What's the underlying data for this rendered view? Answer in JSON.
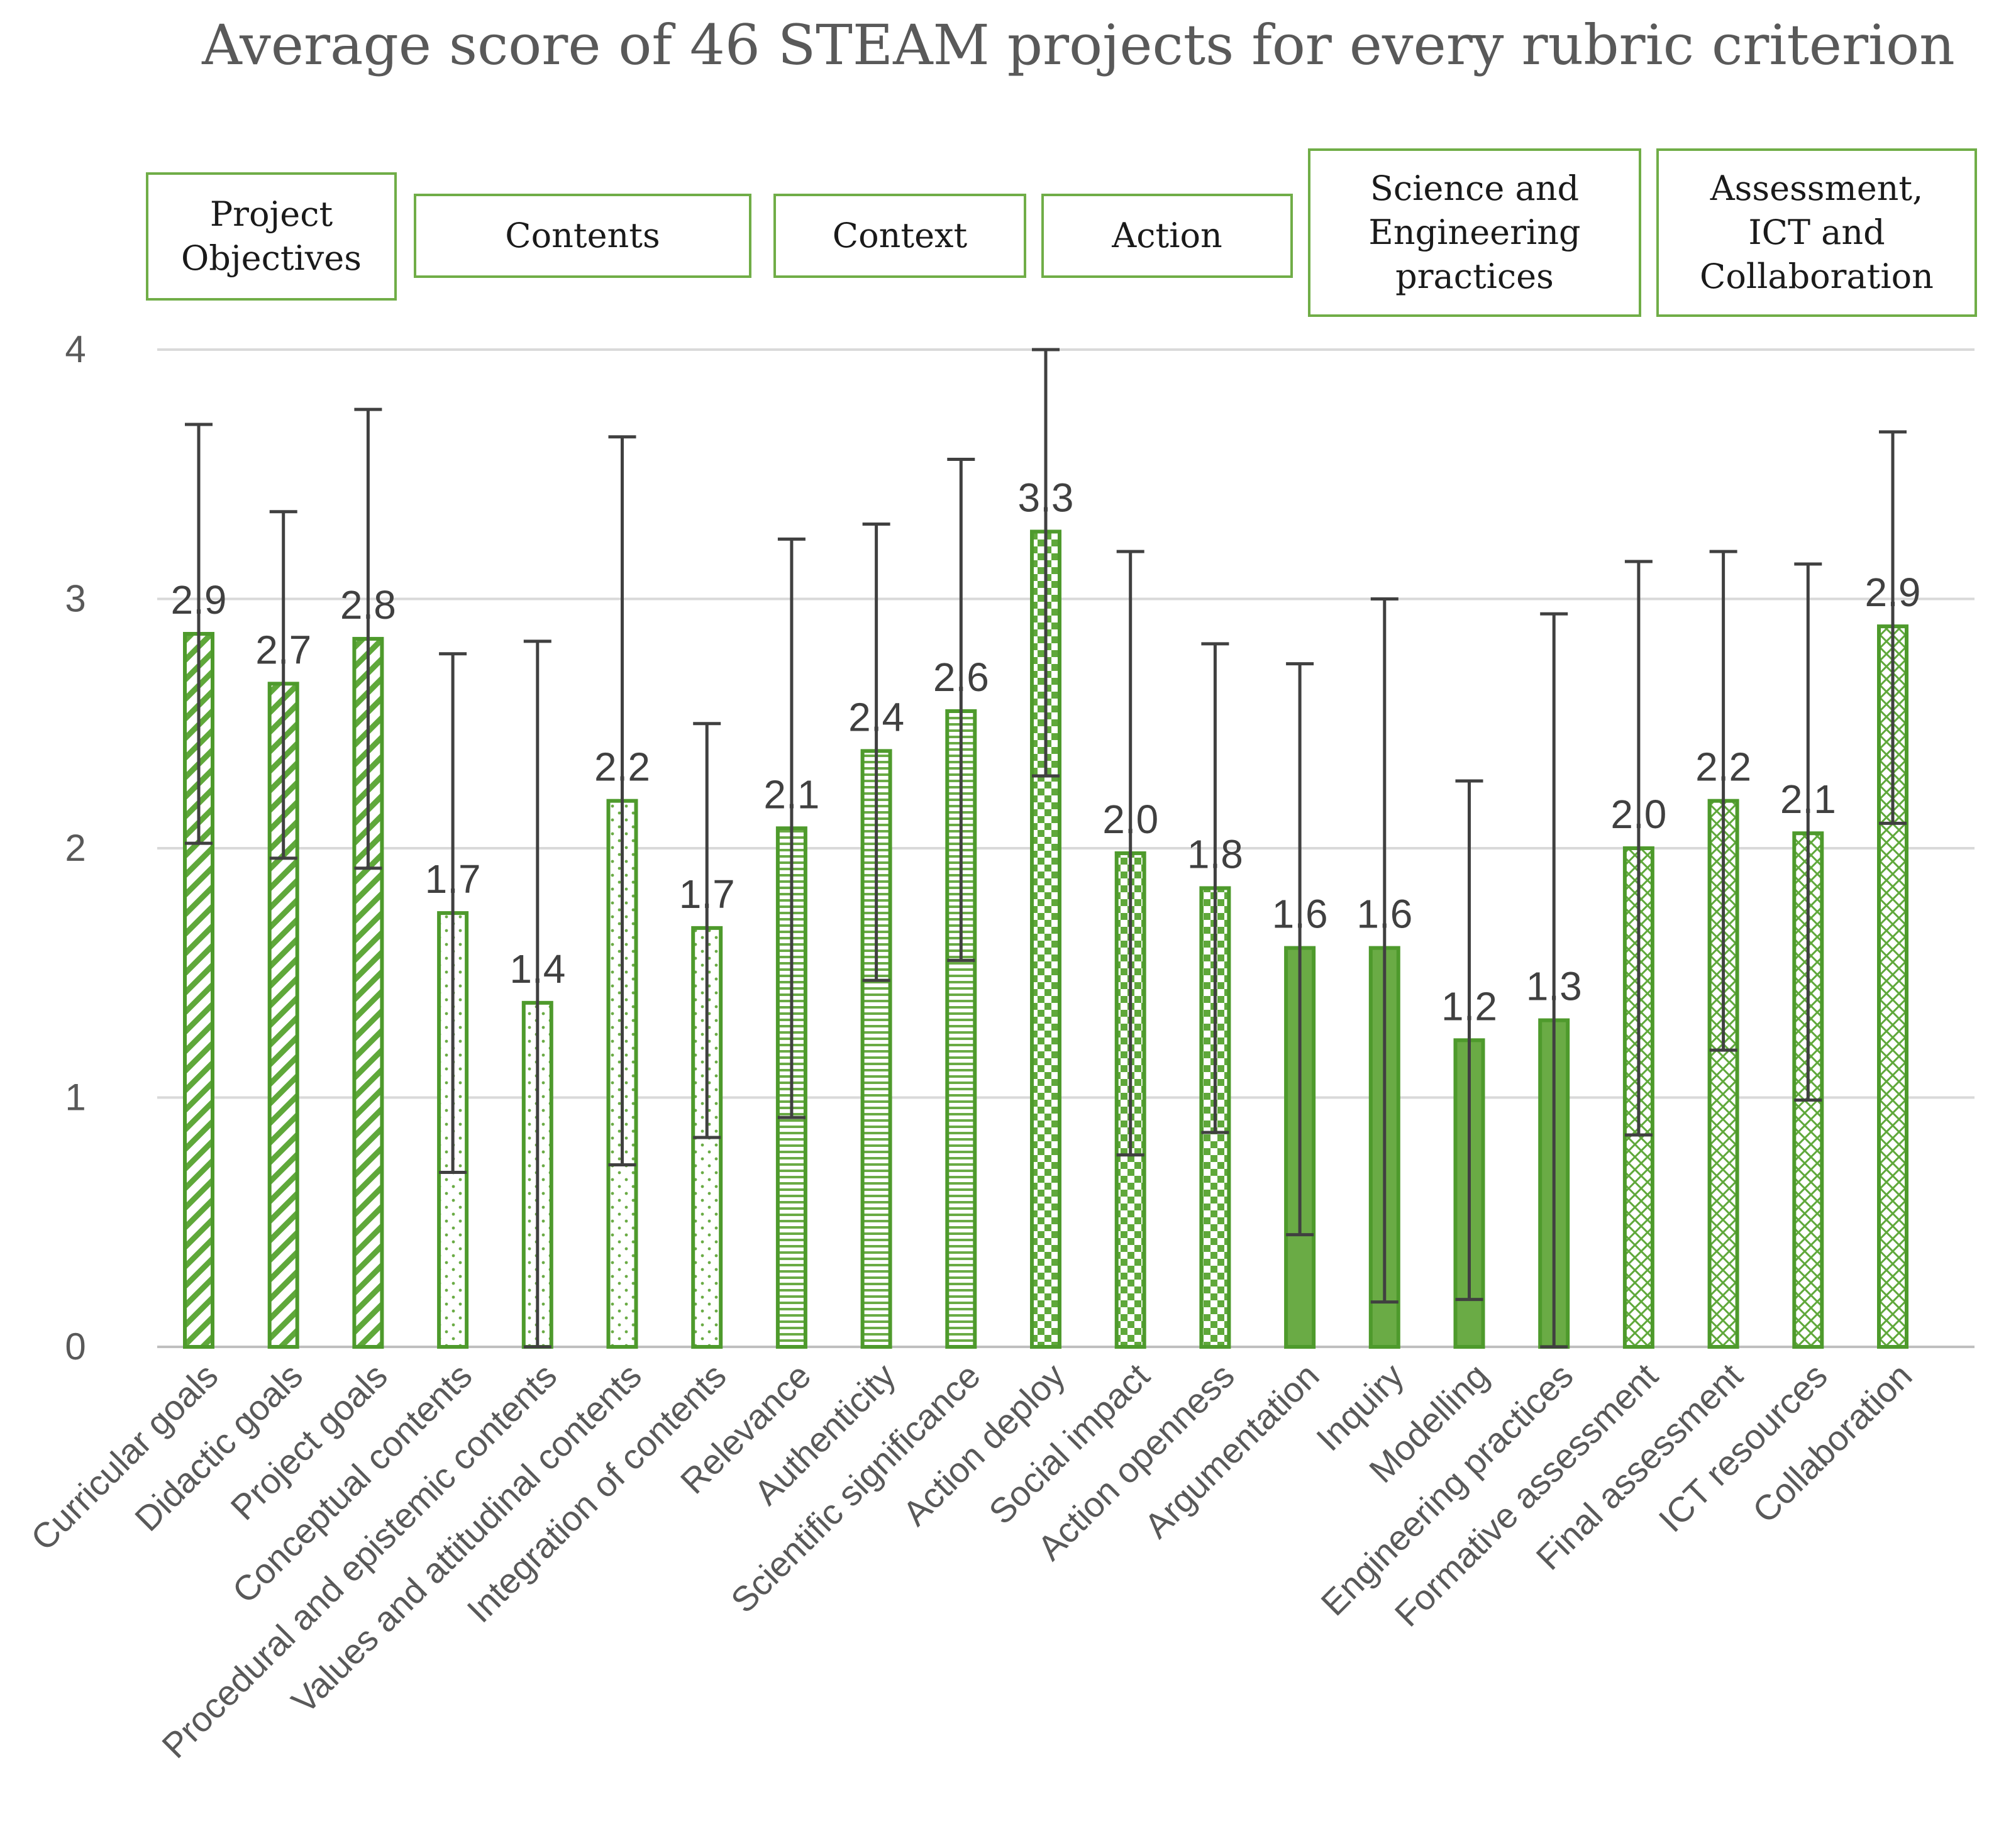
{
  "chart_data": {
    "type": "bar",
    "title": "Average score of 46 STEAM projects for every rubric criterion",
    "xlabel": "",
    "ylabel": "",
    "ylim": [
      0,
      4
    ],
    "yticks": [
      "0",
      "1",
      "2",
      "3",
      "4"
    ],
    "grid": true,
    "categories": [
      "Curricular goals",
      "Didactic goals",
      "Project goals",
      "Conceptual contents",
      "Procedural and epistemic contents",
      "Values and attitudinal contents",
      "Integration of contents",
      "Relevance",
      "Authenticity",
      "Scientific significance",
      "Action deploy",
      "Social impact",
      "Action openness",
      "Argumentation",
      "Inquiry",
      "Modelling",
      "Engineering practices",
      "Formative assessment",
      "Final assessment",
      "ICT resources",
      "Collaboration"
    ],
    "values": [
      2.86,
      2.66,
      2.84,
      1.74,
      1.38,
      2.19,
      1.68,
      2.08,
      2.39,
      2.55,
      3.27,
      1.98,
      1.84,
      1.6,
      1.6,
      1.23,
      1.31,
      2.0,
      2.19,
      2.06,
      2.89
    ],
    "value_labels": [
      "2.9",
      "2.7",
      "2.8",
      "1.7",
      "1.4",
      "2.2",
      "1.7",
      "2.1",
      "2.4",
      "2.6",
      "3.3",
      "2.0",
      "1.8",
      "1.6",
      "1.6",
      "1.2",
      "1.3",
      "2.0",
      "2.2",
      "2.1",
      "2.9"
    ],
    "error_low": [
      2.02,
      1.96,
      1.92,
      0.7,
      0.0,
      0.73,
      0.84,
      0.92,
      1.47,
      1.55,
      2.29,
      0.77,
      0.86,
      0.45,
      0.18,
      0.19,
      0.0,
      0.85,
      1.19,
      0.99,
      2.1
    ],
    "error_high": [
      3.7,
      3.35,
      3.76,
      2.78,
      2.83,
      3.65,
      2.5,
      3.24,
      3.3,
      3.56,
      4.0,
      3.19,
      2.82,
      2.74,
      3.0,
      2.27,
      2.94,
      3.15,
      3.19,
      3.14,
      3.67
    ],
    "category_group": [
      0,
      0,
      0,
      1,
      1,
      1,
      1,
      2,
      2,
      2,
      3,
      3,
      3,
      4,
      4,
      4,
      4,
      5,
      5,
      5,
      5
    ],
    "groups": [
      {
        "name": "Project Objectives",
        "lines": [
          "Project",
          "Objectives"
        ],
        "pattern": "diagonal-stripes"
      },
      {
        "name": "Contents",
        "lines": [
          "Contents"
        ],
        "pattern": "dots"
      },
      {
        "name": "Context",
        "lines": [
          "Context"
        ],
        "pattern": "horizontal-lines"
      },
      {
        "name": "Action",
        "lines": [
          "Action"
        ],
        "pattern": "checkerboard"
      },
      {
        "name": "Science and Engineering practices",
        "lines": [
          "Science and",
          "Engineering",
          "practices"
        ],
        "pattern": "solid"
      },
      {
        "name": "Assessment, ICT and Collaboration",
        "lines": [
          "Assessment,",
          "ICT and",
          "Collaboration"
        ],
        "pattern": "crosshatch"
      }
    ],
    "colors": {
      "bar_stroke": "#4e9a2c",
      "pattern": "#5fa83a",
      "solid_fill": "#6aab45",
      "group_box_stroke": "#70ad47",
      "error_bar": "#404040",
      "grid": "#d9d9d9",
      "text": "#595959"
    }
  }
}
